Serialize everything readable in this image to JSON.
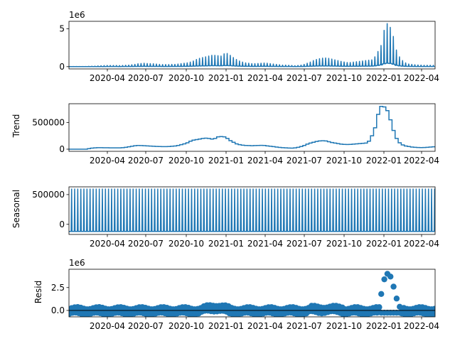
{
  "chart_data": [
    {
      "type": "line",
      "ylabel": "",
      "offset_label": "1e6",
      "ylim": [
        -0.3,
        6.0
      ],
      "yticks": [
        {
          "value": 0,
          "label": "0"
        },
        {
          "value": 5,
          "label": "5"
        }
      ],
      "xticks": [
        "2020-04",
        "2020-07",
        "2020-10",
        "2021-01",
        "2021-04",
        "2021-07",
        "2021-10",
        "2022-01",
        "2022-04"
      ],
      "series": [
        {
          "style": "weekly-spikes",
          "weekly_peaks": [
            0.02,
            0.02,
            0.02,
            0.02,
            0.02,
            0.02,
            0.05,
            0.06,
            0.07,
            0.1,
            0.12,
            0.14,
            0.15,
            0.15,
            0.15,
            0.15,
            0.14,
            0.15,
            0.18,
            0.2,
            0.25,
            0.3,
            0.38,
            0.42,
            0.45,
            0.42,
            0.4,
            0.38,
            0.35,
            0.3,
            0.28,
            0.28,
            0.28,
            0.3,
            0.3,
            0.35,
            0.4,
            0.45,
            0.5,
            0.6,
            0.75,
            0.95,
            1.1,
            1.2,
            1.3,
            1.4,
            1.5,
            1.5,
            1.45,
            1.4,
            1.7,
            1.75,
            1.5,
            1.2,
            0.95,
            0.75,
            0.6,
            0.5,
            0.45,
            0.4,
            0.4,
            0.42,
            0.45,
            0.48,
            0.45,
            0.4,
            0.35,
            0.3,
            0.25,
            0.2,
            0.2,
            0.18,
            0.15,
            0.12,
            0.15,
            0.2,
            0.3,
            0.45,
            0.6,
            0.8,
            0.95,
            1.05,
            1.12,
            1.15,
            1.1,
            1.0,
            0.9,
            0.8,
            0.7,
            0.62,
            0.55,
            0.55,
            0.6,
            0.65,
            0.7,
            0.75,
            0.8,
            0.85,
            0.9,
            1.3,
            2.0,
            2.8,
            4.8,
            5.7,
            5.2,
            4.0,
            2.2,
            1.3,
            0.8,
            0.5,
            0.35,
            0.3,
            0.25,
            0.22,
            0.2,
            0.18,
            0.18,
            0.18,
            0.17
          ]
        }
      ]
    },
    {
      "type": "line",
      "ylabel": "Trend",
      "ylim": [
        -40000,
        850000
      ],
      "yticks": [
        {
          "value": 0,
          "label": "0"
        },
        {
          "value": 500000,
          "label": "500000"
        }
      ],
      "xticks": [
        "2020-04",
        "2020-07",
        "2020-10",
        "2021-01",
        "2021-04",
        "2021-07",
        "2021-10",
        "2022-01",
        "2022-04"
      ],
      "series": [
        {
          "style": "line",
          "weekly_values": [
            0,
            0,
            0,
            0,
            0,
            0,
            10000,
            20000,
            25000,
            28000,
            28000,
            27000,
            26000,
            25000,
            25000,
            25000,
            25000,
            28000,
            35000,
            45000,
            55000,
            65000,
            70000,
            68000,
            65000,
            62000,
            58000,
            55000,
            52000,
            50000,
            48000,
            48000,
            50000,
            55000,
            60000,
            70000,
            85000,
            100000,
            120000,
            150000,
            170000,
            180000,
            190000,
            200000,
            205000,
            200000,
            190000,
            200000,
            230000,
            235000,
            230000,
            200000,
            160000,
            130000,
            100000,
            85000,
            75000,
            70000,
            68000,
            65000,
            68000,
            70000,
            72000,
            70000,
            62000,
            55000,
            48000,
            40000,
            33000,
            28000,
            25000,
            22000,
            20000,
            25000,
            35000,
            50000,
            70000,
            95000,
            115000,
            130000,
            145000,
            155000,
            158000,
            155000,
            140000,
            125000,
            115000,
            105000,
            95000,
            90000,
            88000,
            90000,
            95000,
            100000,
            105000,
            110000,
            115000,
            150000,
            250000,
            400000,
            650000,
            800000,
            790000,
            720000,
            550000,
            350000,
            200000,
            120000,
            80000,
            60000,
            50000,
            40000,
            35000,
            32000,
            30000,
            32000,
            35000,
            40000,
            45000
          ]
        }
      ]
    },
    {
      "type": "line",
      "ylabel": "Seasonal",
      "ylim": [
        -170000,
        630000
      ],
      "yticks": [
        {
          "value": 0,
          "label": "0"
        },
        {
          "value": 500000,
          "label": "500000"
        }
      ],
      "xticks": [
        "2020-04",
        "2020-07",
        "2020-10",
        "2021-01",
        "2021-04",
        "2021-07",
        "2021-10",
        "2022-01",
        "2022-04"
      ],
      "series": [
        {
          "style": "weekly-spikes",
          "weekly_pattern": [
            -120000,
            -120000,
            -120000,
            -120000,
            -120000,
            -120000,
            600000
          ]
        }
      ]
    },
    {
      "type": "scatter",
      "ylabel": "Resid",
      "offset_label": "1e6",
      "ylim": [
        -0.7,
        4.5
      ],
      "yticks": [
        {
          "value": 0,
          "label": "0.0"
        },
        {
          "value": 2.5,
          "label": "2.5"
        }
      ],
      "xticks": [
        "2020-04",
        "2020-07",
        "2020-10",
        "2021-01",
        "2021-04",
        "2021-07",
        "2021-10",
        "2022-01",
        "2022-04"
      ],
      "highlighted_points": [
        {
          "week": 101,
          "value": 1.8
        },
        {
          "week": 102,
          "value": 3.4
        },
        {
          "week": 103,
          "value": 4.0
        },
        {
          "week": 104,
          "value": 3.7
        },
        {
          "week": 105,
          "value": 2.6
        },
        {
          "week": 106,
          "value": 1.3
        },
        {
          "week": 107,
          "value": 0.4
        }
      ]
    }
  ]
}
